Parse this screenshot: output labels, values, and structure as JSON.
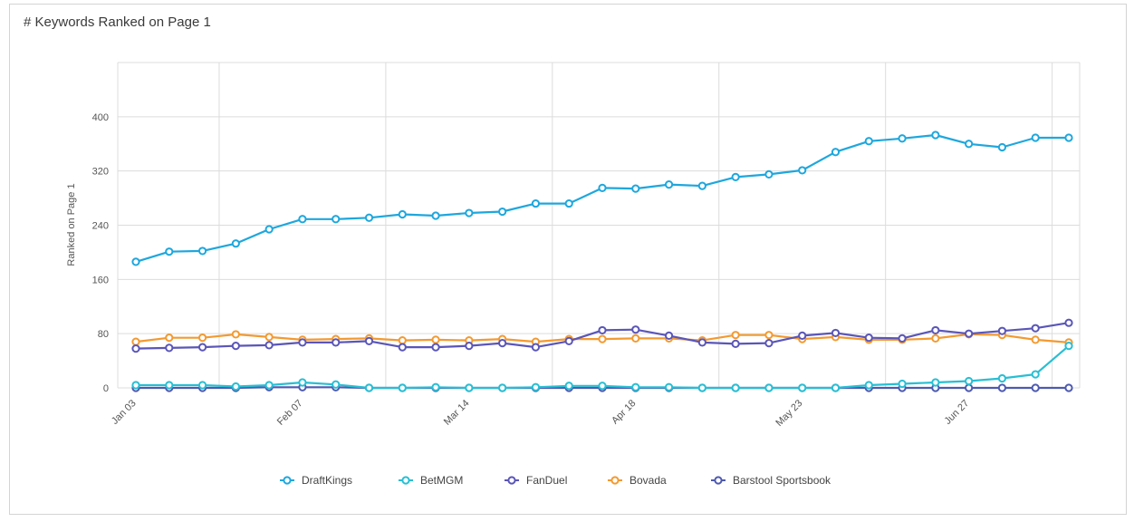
{
  "chart_data": {
    "type": "line",
    "title": "# Keywords Ranked on Page 1",
    "xlabel": "",
    "ylabel": "Ranked on Page 1",
    "ylim": [
      0,
      480
    ],
    "yticks": [
      0,
      80,
      160,
      240,
      320,
      400
    ],
    "x_tick_labels": [
      "Jan 03",
      "Feb 07",
      "Mar 14",
      "Apr 18",
      "May 23",
      "Jun 27"
    ],
    "x_tick_label_indices": [
      0,
      5,
      10,
      15,
      20,
      25
    ],
    "num_points": 29,
    "grid": true,
    "legend_position": "bottom",
    "series": [
      {
        "name": "DraftKings",
        "color": "#1ea7dd",
        "values": [
          186,
          201,
          202,
          213,
          234,
          249,
          249,
          251,
          256,
          254,
          258,
          260,
          272,
          272,
          295,
          294,
          300,
          298,
          311,
          315,
          321,
          348,
          364,
          368,
          373,
          360,
          355,
          369,
          369
        ]
      },
      {
        "name": "BetMGM",
        "color": "#28bfd3",
        "values": [
          4,
          4,
          4,
          2,
          4,
          8,
          5,
          0,
          0,
          1,
          0,
          0,
          1,
          3,
          3,
          1,
          1,
          0,
          0,
          0,
          0,
          0,
          4,
          6,
          8,
          10,
          14,
          20,
          62
        ]
      },
      {
        "name": "FanDuel",
        "color": "#5a56b8",
        "values": [
          58,
          59,
          60,
          62,
          63,
          67,
          67,
          69,
          60,
          60,
          62,
          66,
          60,
          69,
          85,
          86,
          77,
          67,
          65,
          66,
          77,
          81,
          74,
          73,
          85,
          80,
          84,
          88,
          96
        ]
      },
      {
        "name": "Bovada",
        "color": "#f39a31",
        "values": [
          68,
          74,
          74,
          79,
          75,
          71,
          72,
          73,
          70,
          71,
          70,
          72,
          68,
          72,
          72,
          73,
          73,
          70,
          78,
          78,
          72,
          75,
          71,
          71,
          73,
          79,
          78,
          71,
          67
        ]
      },
      {
        "name": "Barstool Sportsbook",
        "color": "#4d5ab0",
        "values": [
          0,
          0,
          0,
          0,
          1,
          1,
          1,
          0,
          0,
          0,
          0,
          0,
          0,
          0,
          0,
          0,
          0,
          0,
          0,
          0,
          0,
          0,
          0,
          0,
          0,
          0,
          0,
          0,
          0
        ]
      }
    ]
  }
}
